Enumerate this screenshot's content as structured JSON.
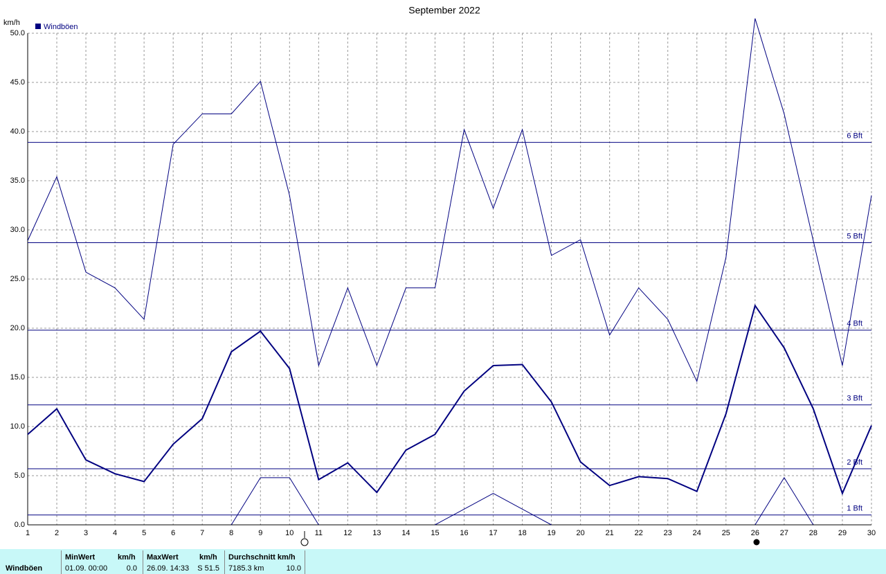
{
  "chart_data": {
    "type": "line",
    "title": "September 2022",
    "y_label": "km/h",
    "x": [
      1,
      2,
      3,
      4,
      5,
      6,
      7,
      8,
      9,
      10,
      11,
      12,
      13,
      14,
      15,
      16,
      17,
      18,
      19,
      20,
      21,
      22,
      23,
      24,
      25,
      26,
      27,
      28,
      29,
      30
    ],
    "xlim": [
      1,
      30
    ],
    "xticks": [
      1,
      2,
      3,
      4,
      5,
      6,
      7,
      8,
      9,
      10,
      11,
      12,
      13,
      14,
      15,
      16,
      17,
      18,
      19,
      20,
      21,
      22,
      23,
      24,
      25,
      26,
      27,
      28,
      29,
      30
    ],
    "ylim": [
      0,
      50
    ],
    "yticks": [
      {
        "value": 0,
        "label": "0.0"
      },
      {
        "value": 5,
        "label": "5.0"
      },
      {
        "value": 10,
        "label": "10.0"
      },
      {
        "value": 15,
        "label": "15.0"
      },
      {
        "value": 20,
        "label": "20.0"
      },
      {
        "value": 25,
        "label": "25.0"
      },
      {
        "value": 30,
        "label": "30.0"
      },
      {
        "value": 35,
        "label": "35.0"
      },
      {
        "value": 40,
        "label": "40.0"
      },
      {
        "value": 45,
        "label": "45.0"
      },
      {
        "value": 50,
        "label": "50.0"
      }
    ],
    "grid": true,
    "series": [
      {
        "color": "#000080",
        "line_width": 1,
        "values": [
          28.9,
          35.4,
          25.7,
          24.1,
          20.9,
          38.7,
          41.8,
          41.8,
          45.1,
          33.5,
          16.2,
          24.1,
          16.2,
          24.1,
          24.1,
          40.2,
          32.2,
          40.2,
          27.4,
          29.0,
          19.3,
          24.1,
          20.9,
          14.6,
          27.2,
          51.5,
          41.8,
          28.9,
          16.2,
          33.5
        ]
      },
      {
        "name": "Windböen",
        "color": "#000080",
        "line_width": 2,
        "values": [
          9.2,
          11.8,
          6.6,
          5.2,
          4.4,
          8.2,
          10.8,
          17.6,
          19.7,
          15.9,
          4.6,
          6.3,
          3.3,
          7.6,
          9.2,
          13.6,
          16.2,
          16.3,
          12.5,
          6.4,
          4.0,
          4.9,
          4.7,
          3.4,
          11.3,
          22.3,
          18.0,
          11.8,
          3.2,
          10.1
        ]
      },
      {
        "color": "#000080",
        "line_width": 1,
        "values": [
          null,
          null,
          null,
          null,
          null,
          null,
          null,
          0,
          4.8,
          4.8,
          0,
          null,
          null,
          null,
          0,
          1.6,
          3.2,
          1.6,
          0,
          null,
          null,
          null,
          null,
          null,
          null,
          0,
          4.8,
          0,
          null,
          null
        ]
      }
    ],
    "reference_lines": [
      {
        "value": 1.0,
        "label": "1 Bft"
      },
      {
        "value": 5.7,
        "label": "2 Bft"
      },
      {
        "value": 12.2,
        "label": "3 Bft"
      },
      {
        "value": 19.8,
        "label": "4 Bft"
      },
      {
        "value": 28.7,
        "label": "5 Bft"
      },
      {
        "value": 38.9,
        "label": "6 Bft"
      }
    ]
  },
  "summary": {
    "label": "Windböen",
    "min": {
      "header": "MinWert",
      "unit": "km/h",
      "time": "01.09.  00:00",
      "value": "0.0"
    },
    "max": {
      "header": "MaxWert",
      "unit": "km/h",
      "time": "26.09.  14:33",
      "value": "S 51.5"
    },
    "avg": {
      "header": "Durchschnitt km/h",
      "distance": "7185.3 km",
      "value": "10.0"
    }
  }
}
